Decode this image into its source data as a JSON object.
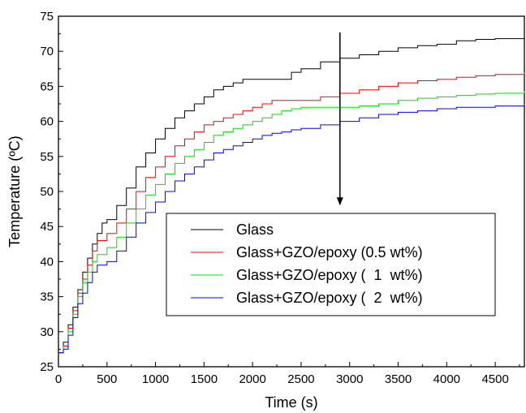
{
  "chart_data": {
    "type": "line",
    "title": "",
    "xlabel": "Time (s)",
    "ylabel": "Temperature (ºC)",
    "xlim": [
      0,
      4800
    ],
    "ylim": [
      25,
      75
    ],
    "xticks": [
      0,
      500,
      1000,
      1500,
      2000,
      2500,
      3000,
      3500,
      4000,
      4500
    ],
    "yticks": [
      25,
      30,
      35,
      40,
      45,
      50,
      55,
      60,
      65,
      70,
      75
    ],
    "grid": false,
    "legend_position": "center-right",
    "series": [
      {
        "name": "Glass",
        "color": "#000000",
        "x": [
          0,
          50,
          100,
          150,
          200,
          250,
          300,
          350,
          400,
          450,
          500,
          600,
          700,
          800,
          900,
          1000,
          1100,
          1200,
          1300,
          1400,
          1500,
          1600,
          1700,
          1800,
          1900,
          2000,
          2100,
          2200,
          2300,
          2400,
          2500,
          2700,
          2900,
          3100,
          3300,
          3500,
          3700,
          3900,
          4100,
          4300,
          4500,
          4800
        ],
        "y": [
          27.0,
          28.5,
          31.0,
          33.5,
          36.0,
          38.5,
          40.5,
          42.5,
          44.0,
          45.5,
          46.0,
          48.0,
          50.5,
          53.5,
          55.5,
          57.5,
          59.0,
          60.5,
          61.5,
          62.5,
          63.5,
          64.5,
          65.0,
          65.5,
          66.0,
          66.0,
          66.0,
          66.0,
          66.0,
          67.0,
          67.5,
          68.5,
          69.0,
          69.5,
          70.0,
          70.5,
          70.8,
          71.0,
          71.5,
          71.7,
          71.8,
          72.0
        ]
      },
      {
        "name": "Glass+GZO/epoxy (0.5 wt%)",
        "color": "#ff0000",
        "x": [
          0,
          50,
          100,
          150,
          200,
          250,
          300,
          350,
          400,
          500,
          600,
          700,
          800,
          900,
          1000,
          1100,
          1200,
          1300,
          1400,
          1500,
          1600,
          1700,
          1800,
          1900,
          2000,
          2100,
          2200,
          2300,
          2400,
          2500,
          2700,
          2900,
          3100,
          3300,
          3500,
          3700,
          3900,
          4100,
          4300,
          4500,
          4800
        ],
        "y": [
          27.0,
          28.0,
          30.5,
          33.0,
          35.5,
          37.5,
          39.5,
          41.5,
          43.0,
          44.0,
          45.5,
          47.5,
          50.0,
          52.0,
          53.5,
          55.0,
          56.5,
          57.5,
          58.5,
          59.5,
          60.0,
          60.5,
          61.0,
          61.5,
          62.0,
          62.5,
          63.0,
          63.0,
          63.0,
          63.0,
          63.5,
          64.0,
          64.5,
          65.0,
          65.5,
          65.8,
          66.0,
          66.3,
          66.5,
          66.7,
          67.0
        ]
      },
      {
        "name": "Glass+GZO/epoxy (  1  wt%)",
        "color": "#00e000",
        "x": [
          0,
          50,
          100,
          150,
          200,
          250,
          300,
          350,
          400,
          500,
          600,
          700,
          800,
          900,
          1000,
          1100,
          1200,
          1300,
          1400,
          1500,
          1600,
          1700,
          1800,
          1900,
          2000,
          2100,
          2200,
          2300,
          2400,
          2500,
          2700,
          2900,
          3100,
          3300,
          3500,
          3700,
          3900,
          4100,
          4300,
          4500,
          4800
        ],
        "y": [
          27.0,
          27.8,
          30.0,
          32.5,
          35.0,
          37.0,
          38.5,
          40.0,
          41.0,
          42.0,
          43.5,
          45.5,
          47.5,
          49.5,
          51.0,
          52.5,
          54.0,
          55.0,
          56.0,
          57.0,
          58.0,
          58.5,
          59.0,
          59.5,
          60.0,
          60.5,
          61.0,
          61.5,
          61.8,
          62.0,
          62.0,
          62.0,
          62.2,
          62.5,
          63.0,
          63.3,
          63.5,
          63.7,
          63.9,
          64.0,
          64.3
        ]
      },
      {
        "name": "Glass+GZO/epoxy (  2  wt%)",
        "color": "#0000ff",
        "x": [
          0,
          50,
          100,
          150,
          200,
          250,
          300,
          350,
          400,
          500,
          600,
          700,
          800,
          900,
          1000,
          1100,
          1200,
          1300,
          1400,
          1500,
          1600,
          1700,
          1800,
          1900,
          2000,
          2100,
          2200,
          2300,
          2400,
          2500,
          2700,
          2900,
          3100,
          3300,
          3500,
          3700,
          3900,
          4100,
          4300,
          4500,
          4800
        ],
        "y": [
          27.0,
          27.5,
          29.5,
          32.0,
          34.0,
          35.5,
          37.0,
          38.5,
          39.5,
          40.0,
          41.5,
          43.5,
          45.5,
          47.0,
          48.5,
          50.0,
          51.5,
          52.5,
          53.5,
          54.5,
          55.5,
          56.0,
          56.5,
          57.0,
          57.5,
          58.0,
          58.3,
          58.5,
          58.8,
          59.0,
          59.5,
          60.0,
          60.5,
          61.0,
          61.3,
          61.5,
          61.8,
          62.0,
          62.0,
          62.2,
          62.5
        ]
      }
    ],
    "annotations": [
      {
        "type": "arrow",
        "direction": "down",
        "x": 2900,
        "y_from": 75,
        "y_to": 48
      }
    ]
  }
}
